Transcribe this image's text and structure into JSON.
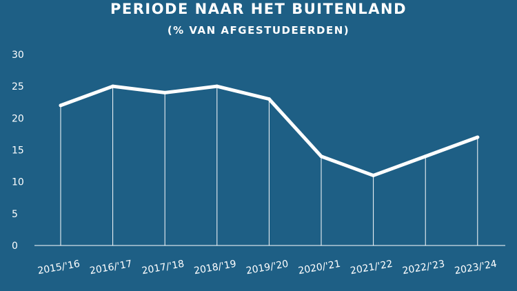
{
  "chart_data": {
    "type": "line",
    "title": "PERIODE NAAR HET BUITENLAND",
    "subtitle": "(% VAN AFGESTUDEERDEN)",
    "xlabel": "",
    "ylabel": "",
    "categories": [
      "2015/'16",
      "2016/'17",
      "2017/'18",
      "2018/'19",
      "2019/'20",
      "2020/'21",
      "2021/'22",
      "2022/'23",
      "2023/'24"
    ],
    "values": [
      22,
      25,
      24,
      25,
      23,
      14,
      11,
      14,
      17
    ],
    "ylim": [
      0,
      30
    ],
    "yticks": [
      0,
      5,
      10,
      15,
      20,
      25,
      30
    ],
    "grid": false,
    "drop_lines": true,
    "colors": {
      "background": "#1e5f85",
      "line": "#ffffff",
      "text": "#ffffff"
    }
  }
}
